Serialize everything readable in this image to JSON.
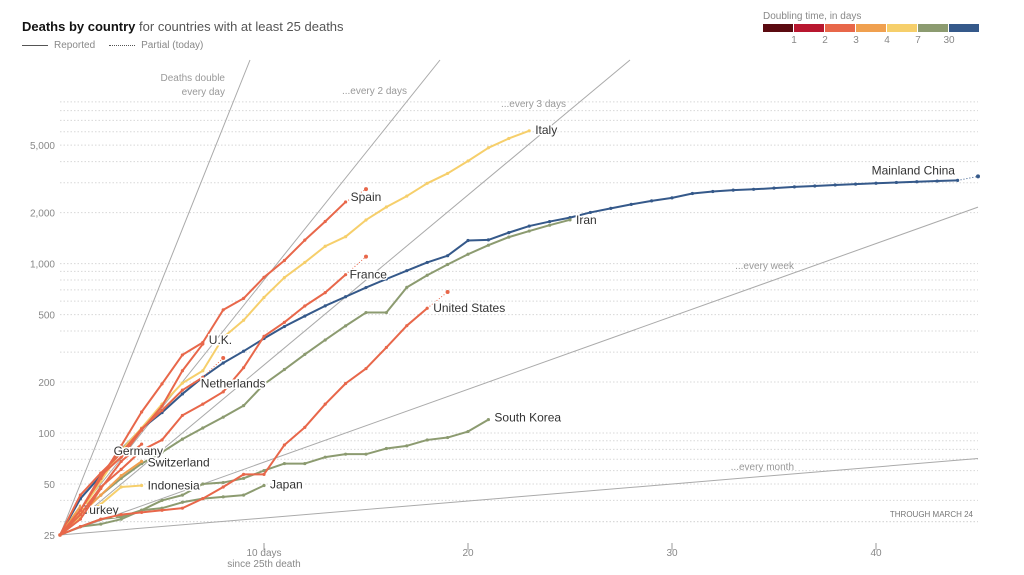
{
  "header": {
    "title_bold": "Deaths by country",
    "title_rest": " for countries with at least 25 deaths",
    "legend_reported": "Reported",
    "legend_partial": "Partial (today)"
  },
  "doubling_scale": {
    "title": "Doubling time, in days",
    "colors": [
      "#5b0a10",
      "#b8172f",
      "#e8674a",
      "#f0a04f",
      "#f6cf6b",
      "#8c9b70",
      "#35598a"
    ],
    "ticks": [
      "1",
      "2",
      "3",
      "4",
      "7",
      "30"
    ]
  },
  "chart_data": {
    "type": "line",
    "title": "Deaths by country",
    "xlabel": "10 days",
    "xlabel_sub": "since 25th death",
    "ylabel": "",
    "yscale": "log",
    "ylim": [
      25,
      15900
    ],
    "xlim": [
      0,
      45
    ],
    "yticks": [
      25,
      50,
      100,
      200,
      500,
      1000,
      2000,
      5000
    ],
    "ytick_labels": [
      "25",
      "50",
      "100",
      "200",
      "500",
      "1,000",
      "2,000",
      "5,000"
    ],
    "xticks": [
      10,
      20,
      30,
      40
    ],
    "xtick_labels": [
      "10 days",
      "20",
      "30",
      "40"
    ],
    "note": "THROUGH MARCH 24",
    "reference_lines": [
      {
        "doubling_days": 1,
        "label": [
          "Deaths double",
          "every day"
        ]
      },
      {
        "doubling_days": 2,
        "label": [
          "...every 2 days"
        ]
      },
      {
        "doubling_days": 3,
        "label": [
          "...every 3 days"
        ]
      },
      {
        "doubling_days": 7,
        "label": [
          "...every week"
        ]
      },
      {
        "doubling_days": 30,
        "label": [
          "...every month"
        ]
      }
    ],
    "series": [
      {
        "name": "Mainland China",
        "color": "#35598a",
        "values": [
          25,
          41,
          56,
          80,
          106,
          132,
          170,
          213,
          259,
          304,
          361,
          425,
          490,
          563,
          637,
          722,
          811,
          908,
          1016,
          1113,
          1368,
          1380,
          1523,
          1665,
          1770,
          1868,
          2004,
          2118,
          2236,
          2345,
          2442,
          2592,
          2663,
          2715,
          2744,
          2788,
          2835,
          2870,
          2912,
          2943,
          2981,
          3012,
          3042,
          3070,
          3097
        ],
        "partial": 3270
      },
      {
        "name": "Iran",
        "color": "#8c9b70",
        "values": [
          25,
          34,
          43,
          54,
          66,
          77,
          92,
          107,
          124,
          145,
          194,
          237,
          291,
          354,
          429,
          514,
          514,
          724,
          853,
          988,
          1135,
          1284,
          1433,
          1556,
          1685,
          1812
        ]
      },
      {
        "name": "South Korea",
        "color": "#8c9b70",
        "values": [
          25,
          28,
          31,
          32,
          35,
          40,
          43,
          50,
          51,
          54,
          60,
          66,
          66,
          72,
          75,
          75,
          81,
          84,
          91,
          94,
          102,
          120
        ]
      },
      {
        "name": "Japan",
        "color": "#8c9b70",
        "values": [
          25,
          28,
          29,
          31,
          35,
          36,
          39,
          41,
          42,
          43,
          49
        ]
      },
      {
        "name": "Italy",
        "color": "#f6cf6b",
        "values": [
          25,
          34,
          52,
          79,
          107,
          148,
          197,
          233,
          366,
          463,
          631,
          827,
          1016,
          1266,
          1441,
          1809,
          2158,
          2503,
          2978,
          3405,
          4032,
          4825,
          5476,
          6077
        ]
      },
      {
        "name": "Indonesia",
        "color": "#f6cf6b",
        "values": [
          25,
          32,
          38,
          48,
          49
        ]
      },
      {
        "name": "Switzerland",
        "color": "#f0a04f",
        "values": [
          25,
          33,
          43,
          56,
          68
        ]
      },
      {
        "name": "Turkey",
        "color": "#f0a04f",
        "values": [
          25,
          37
        ]
      },
      {
        "name": "Spain",
        "color": "#e8674a",
        "values": [
          25,
          35,
          54,
          84,
          133,
          195,
          289,
          342,
          533,
          623,
          830,
          1043,
          1375,
          1772,
          2311
        ],
        "partial": 2750
      },
      {
        "name": "France",
        "color": "#e8674a",
        "values": [
          25,
          33,
          48,
          61,
          79,
          91,
          127,
          148,
          175,
          243,
          372,
          450,
          562,
          674,
          860
        ],
        "partial": 1100
      },
      {
        "name": "United States",
        "color": "#e8674a",
        "values": [
          25,
          28,
          31,
          33,
          34,
          35,
          36,
          41,
          48,
          57,
          57,
          85,
          108,
          148,
          196,
          240,
          320,
          430,
          545
        ],
        "partial": 680
      },
      {
        "name": "U.K.",
        "color": "#e8674a",
        "values": [
          25,
          35,
          56,
          72,
          104,
          144,
          233,
          335
        ]
      },
      {
        "name": "Netherlands",
        "color": "#e8674a",
        "values": [
          25,
          43,
          58,
          76,
          106,
          136,
          179,
          213
        ],
        "partial": 277
      },
      {
        "name": "Germany",
        "color": "#e8674a",
        "values": [
          25,
          31,
          47,
          68,
          86
        ]
      }
    ]
  }
}
